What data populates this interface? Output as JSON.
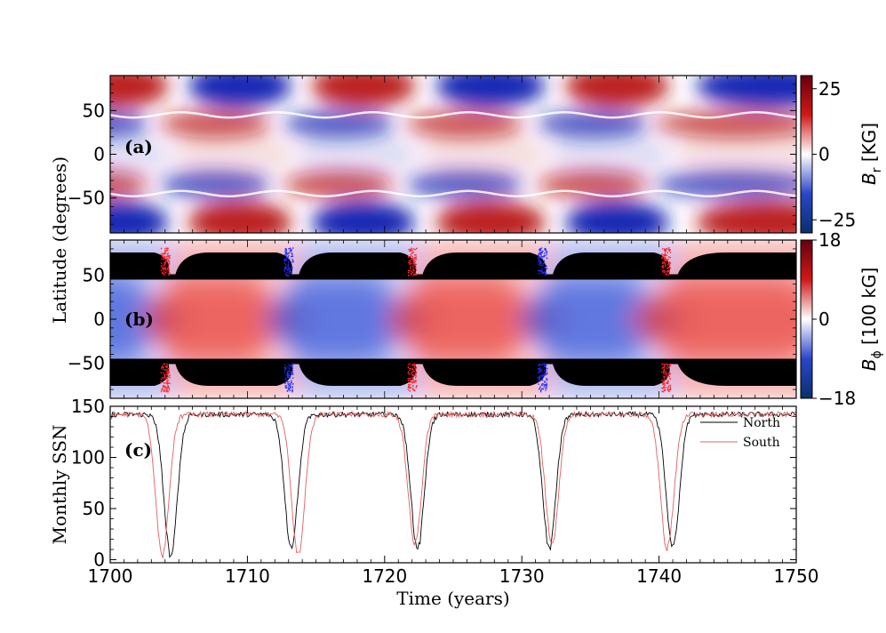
{
  "chart_data": [
    {
      "id": "a",
      "type": "heatmap",
      "panel_label": "(a)",
      "xlim": [
        1700,
        1750
      ],
      "ylim": [
        -90,
        90
      ],
      "yticks": [
        50,
        0,
        -50
      ],
      "colorbar": {
        "label_main": "B",
        "label_sub": "r",
        "label_unit": " [KG]",
        "ticks": [
          25,
          0,
          -25
        ],
        "range": [
          -30,
          30
        ],
        "colors": [
          "#08306b",
          "#2b45c8",
          "#ffffff",
          "#d01818",
          "#67000d"
        ]
      },
      "cycle_reversals": [
        1704.5,
        1713.5,
        1722.5,
        1732.0,
        1741.0
      ],
      "colors": {
        "positive": "#b81414",
        "negative": "#1020b0"
      }
    },
    {
      "id": "b",
      "type": "heatmap",
      "panel_label": "(b)",
      "xlim": [
        1700,
        1750
      ],
      "ylim": [
        -90,
        90
      ],
      "yticks": [
        50,
        0,
        -50
      ],
      "colorbar": {
        "label_main": "B",
        "label_sub": "ϕ",
        "label_unit": " [100 kG]",
        "ticks": [
          18,
          0,
          -18
        ],
        "range": [
          -18,
          18
        ],
        "colors": [
          "#08306b",
          "#2b45c8",
          "#ffffff",
          "#d01818",
          "#67000d"
        ]
      },
      "polar_band_latitude": 45,
      "cycle_reversals": [
        1704.5,
        1713.5,
        1722.5,
        1732.0,
        1741.0
      ],
      "colors": {
        "positive": "#e8403a",
        "negative": "#3a56d8",
        "mask": "#000000"
      }
    },
    {
      "id": "c",
      "type": "line",
      "panel_label": "(c)",
      "ylabel": "Monthly SSN",
      "xlabel": "Time (years)",
      "xlim": [
        1700,
        1750
      ],
      "ylim": [
        -3,
        150
      ],
      "xticks": [
        1700,
        1710,
        1720,
        1730,
        1740,
        1750
      ],
      "yticks": [
        150,
        100,
        50,
        0
      ],
      "plateau": 142,
      "series": [
        {
          "name": "North",
          "color": "#000000",
          "minima": [
            {
              "x": 1704.4,
              "y": 4
            },
            {
              "x": 1713.2,
              "y": 12
            },
            {
              "x": 1722.4,
              "y": 10
            },
            {
              "x": 1732.0,
              "y": 12
            },
            {
              "x": 1741.0,
              "y": 12
            }
          ],
          "width": 0.8
        },
        {
          "name": "South",
          "color": "#e06060",
          "minima": [
            {
              "x": 1703.8,
              "y": 5
            },
            {
              "x": 1713.7,
              "y": 5
            },
            {
              "x": 1722.2,
              "y": 14
            },
            {
              "x": 1732.2,
              "y": 15
            },
            {
              "x": 1740.6,
              "y": 10
            }
          ],
          "width": 0.8
        }
      ],
      "legend": "top-right"
    }
  ],
  "shared_ylabel": "Latitude (degrees)"
}
